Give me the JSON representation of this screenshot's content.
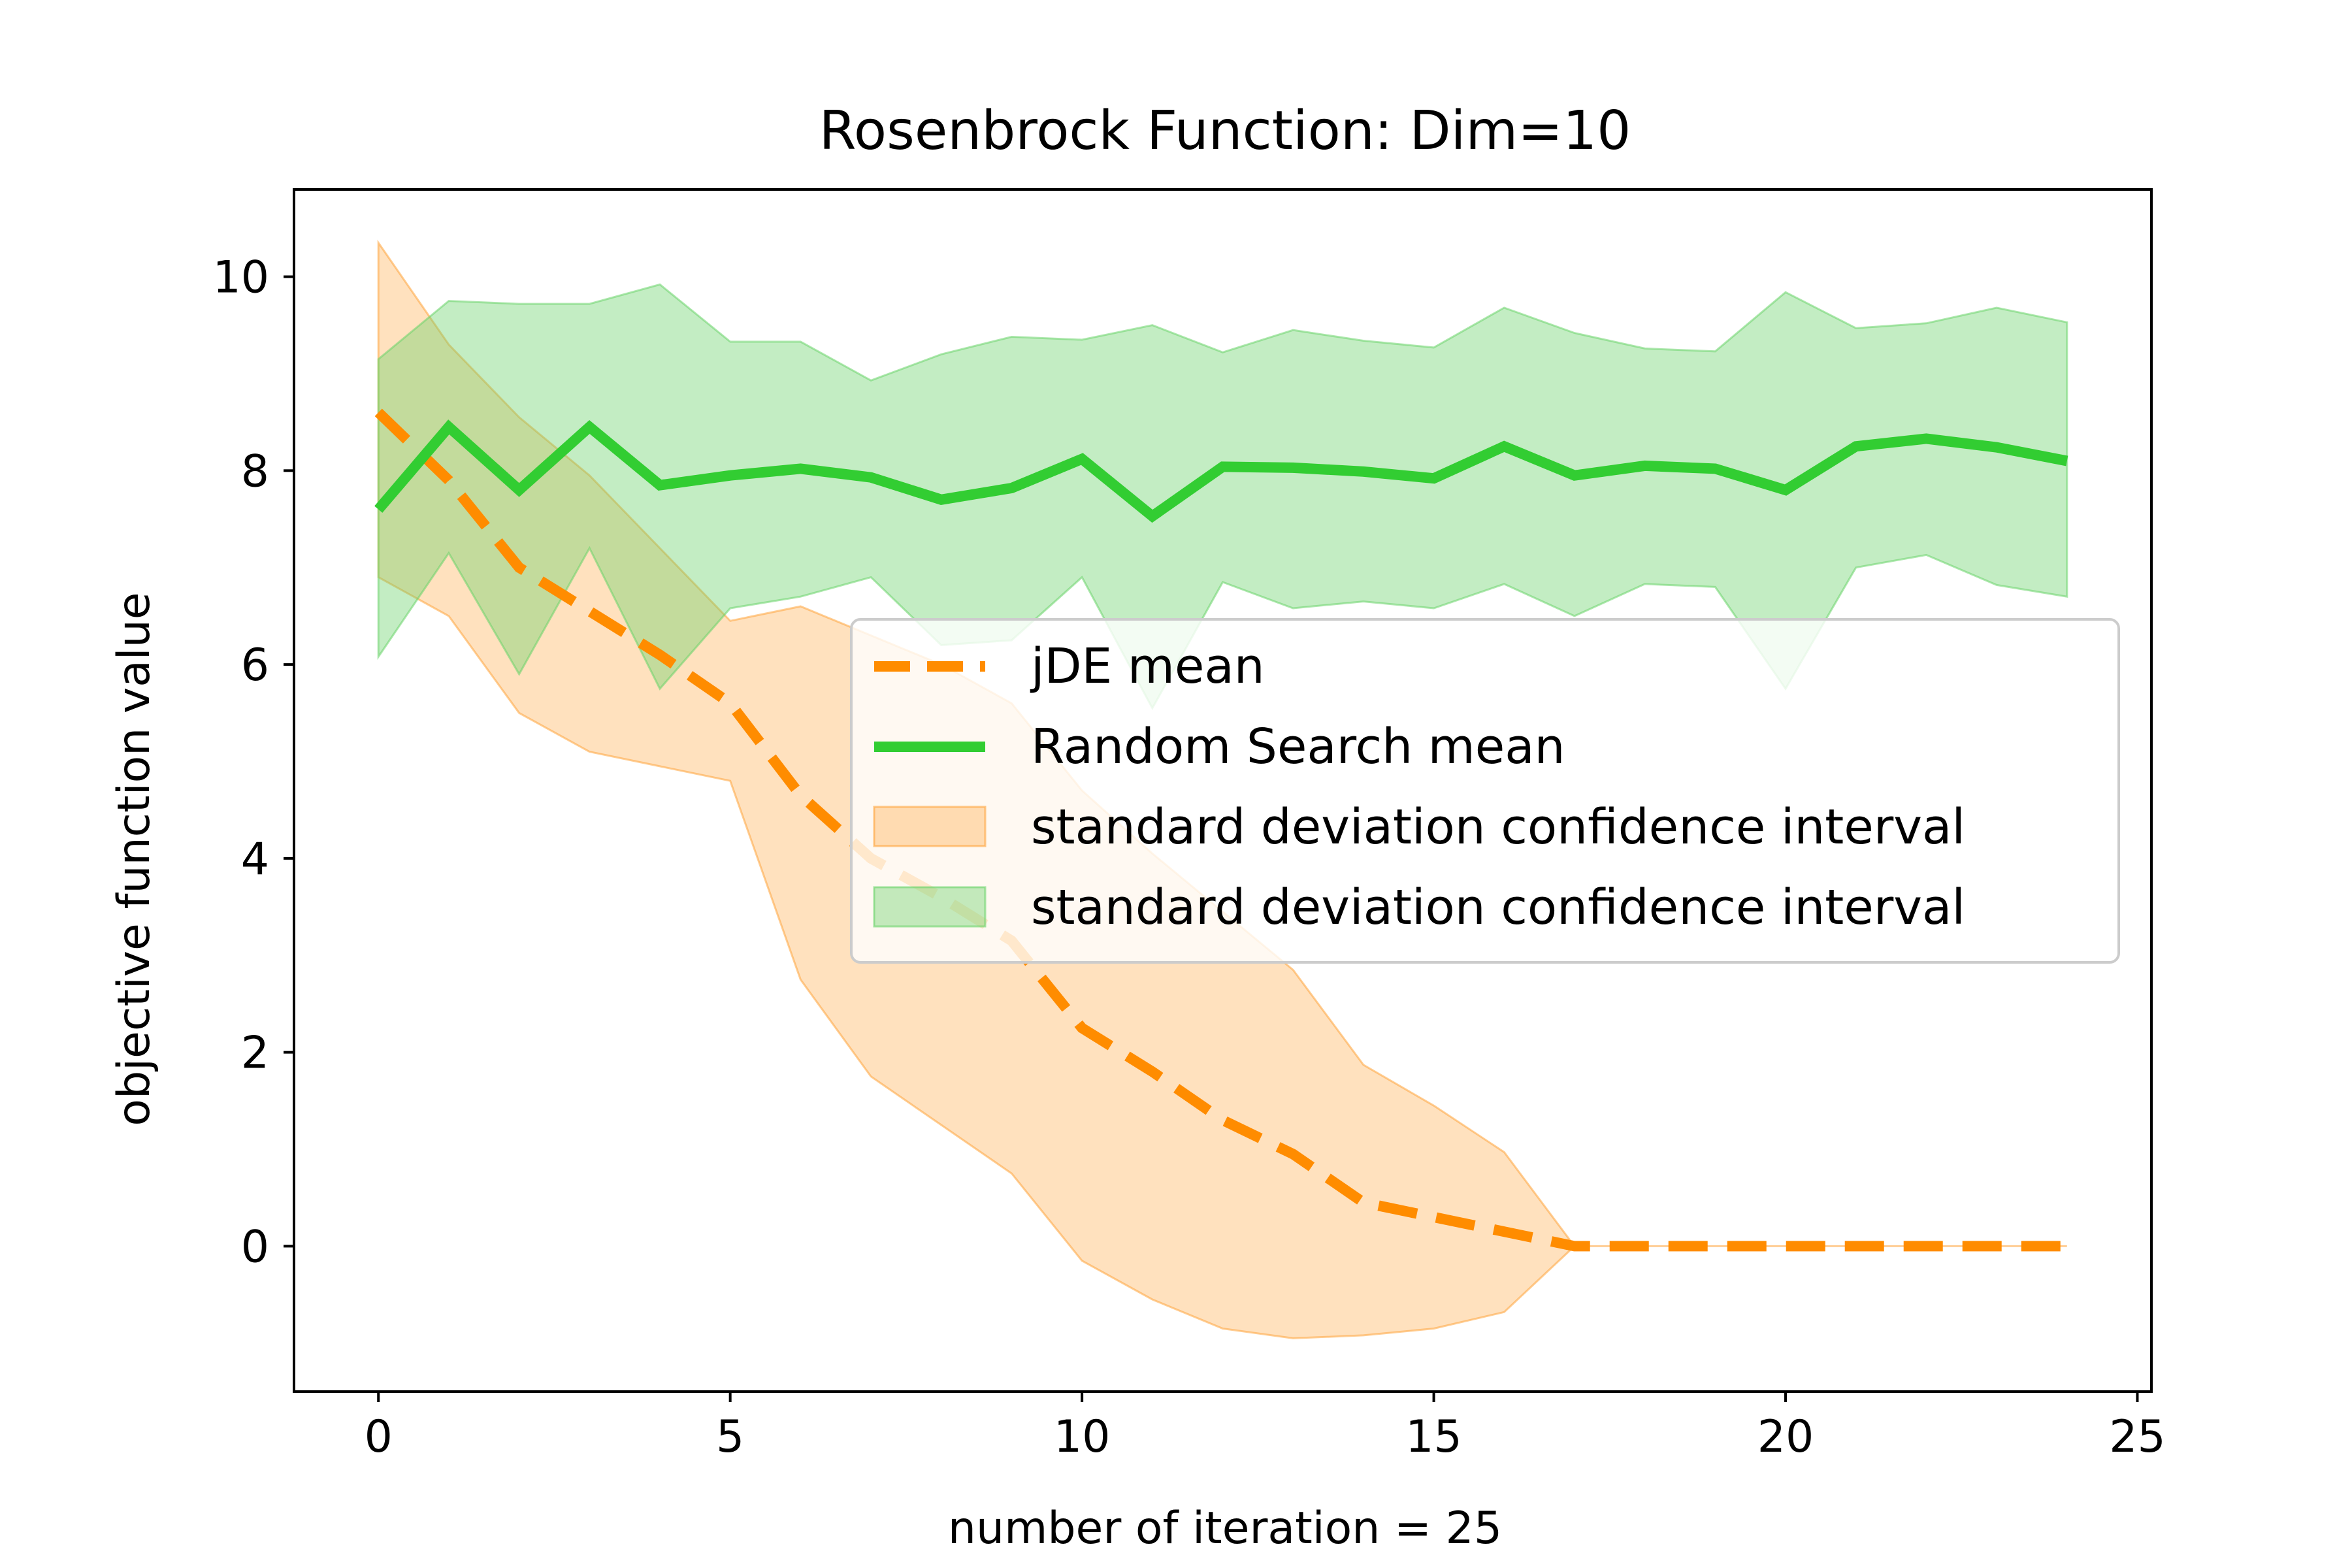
{
  "chart_data": {
    "type": "line",
    "title": "Rosenbrock Function: Dim=10",
    "xlabel": "number of iteration = 25",
    "ylabel": "objective function value",
    "xlim": [
      -1.2,
      25.2
    ],
    "ylim": [
      -1.5,
      10.9
    ],
    "xticks": [
      0,
      5,
      10,
      15,
      20,
      25
    ],
    "yticks": [
      0,
      2,
      4,
      6,
      8,
      10
    ],
    "grid": false,
    "legend_position": "center-right",
    "x": [
      0,
      1,
      2,
      3,
      4,
      5,
      6,
      7,
      8,
      9,
      10,
      11,
      12,
      13,
      14,
      15,
      16,
      17,
      18,
      19,
      20,
      21,
      22,
      23,
      24
    ],
    "series": [
      {
        "name": "jDE mean",
        "style": "dashed",
        "color": "#ff8c00",
        "values": [
          8.6,
          7.9,
          7.0,
          6.55,
          6.1,
          5.6,
          4.65,
          4.0,
          3.6,
          3.15,
          2.25,
          1.8,
          1.3,
          0.95,
          0.45,
          0.3,
          0.15,
          0.0,
          0.0,
          0.0,
          0.0,
          0.0,
          0.0,
          0.0,
          0.0
        ]
      },
      {
        "name": "Random Search mean",
        "style": "solid",
        "color": "#32cd32",
        "values": [
          7.6,
          8.45,
          7.8,
          8.45,
          7.85,
          7.95,
          8.02,
          7.93,
          7.7,
          7.82,
          8.12,
          7.53,
          8.04,
          8.03,
          7.99,
          7.92,
          8.25,
          7.95,
          8.05,
          8.02,
          7.8,
          8.25,
          8.33,
          8.24,
          8.1
        ]
      }
    ],
    "bands": [
      {
        "name": "standard deviation confidence interval",
        "color": "#ffa43a",
        "lower": [
          6.9,
          6.5,
          5.5,
          5.1,
          4.95,
          4.8,
          2.75,
          1.75,
          1.25,
          0.75,
          -0.15,
          -0.55,
          -0.85,
          -0.95,
          -0.92,
          -0.85,
          -0.68,
          0.0,
          0.0,
          0.0,
          0.0,
          0.0,
          0.0,
          0.0,
          0.0
        ],
        "upper": [
          10.35,
          9.3,
          8.55,
          7.95,
          7.2,
          6.45,
          6.6,
          6.3,
          6.0,
          5.6,
          4.7,
          4.05,
          3.45,
          2.85,
          1.87,
          1.45,
          0.97,
          0.0,
          0.0,
          0.0,
          0.0,
          0.0,
          0.0,
          0.0,
          0.0
        ]
      },
      {
        "name": "standard deviation confidence interval",
        "color": "#69d369",
        "lower": [
          6.08,
          7.15,
          5.9,
          7.2,
          5.75,
          6.58,
          6.7,
          6.9,
          6.2,
          6.25,
          6.9,
          5.55,
          6.85,
          6.58,
          6.65,
          6.58,
          6.83,
          6.5,
          6.83,
          6.8,
          5.75,
          7.0,
          7.13,
          6.82,
          6.7
        ],
        "upper": [
          9.15,
          9.75,
          9.72,
          9.72,
          9.92,
          9.33,
          9.33,
          8.93,
          9.2,
          9.38,
          9.35,
          9.5,
          9.22,
          9.45,
          9.34,
          9.27,
          9.68,
          9.42,
          9.26,
          9.23,
          9.84,
          9.47,
          9.52,
          9.68,
          9.53
        ]
      }
    ]
  }
}
